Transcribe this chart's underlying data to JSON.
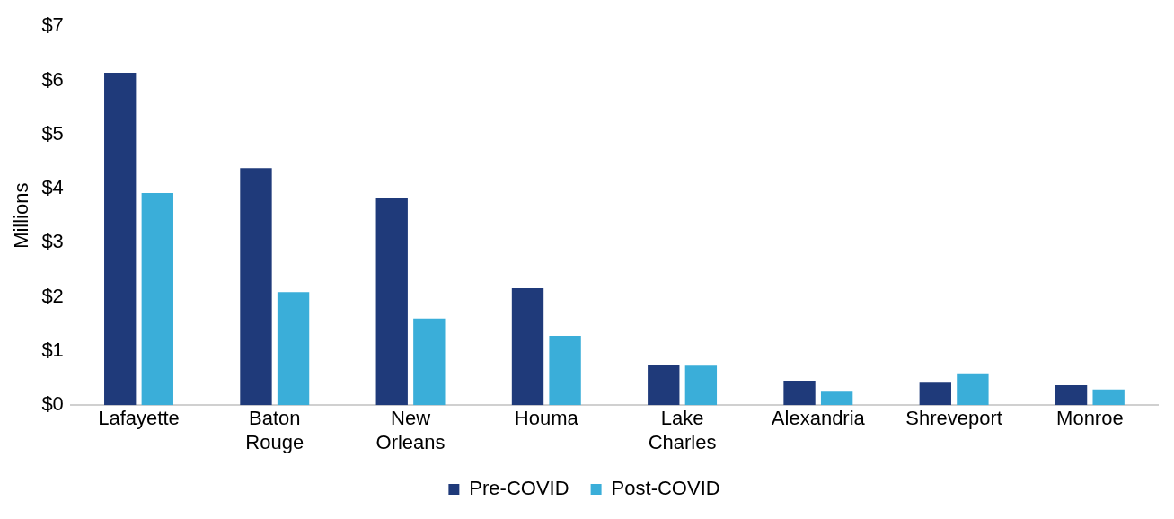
{
  "chart_data": {
    "type": "bar",
    "ylabel": "Millions",
    "categories": [
      "Lafayette",
      "Baton Rouge",
      "New Orleans",
      "Houma",
      "Lake Charles",
      "Alexandria",
      "Shreveport",
      "Monroe"
    ],
    "series": [
      {
        "name": "Pre-COVID",
        "color": "#1f3a7a",
        "values": [
          6.14,
          4.38,
          3.82,
          2.16,
          0.75,
          0.45,
          0.43,
          0.37
        ]
      },
      {
        "name": "Post-COVID",
        "color": "#3aaed9",
        "values": [
          3.92,
          2.09,
          1.6,
          1.28,
          0.73,
          0.25,
          0.59,
          0.29
        ]
      }
    ],
    "ylim": [
      0,
      7
    ],
    "yticks": [
      {
        "value": 0,
        "label": "$0"
      },
      {
        "value": 1,
        "label": "$1"
      },
      {
        "value": 2,
        "label": "$2"
      },
      {
        "value": 3,
        "label": "$3"
      },
      {
        "value": 4,
        "label": "$4"
      },
      {
        "value": 5,
        "label": "$5"
      },
      {
        "value": 6,
        "label": "$6"
      },
      {
        "value": 7,
        "label": "$7"
      }
    ],
    "grid": false,
    "legend": "bottom"
  }
}
